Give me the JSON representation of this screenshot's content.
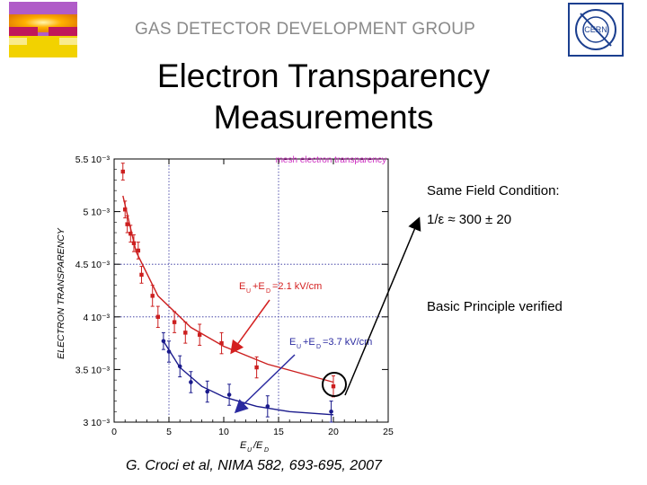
{
  "header": {
    "group_name": "GAS DETECTOR DEVELOPMENT GROUP",
    "logo_right_text": "CERN"
  },
  "title_line1": "Electron Transparency",
  "title_line2": "Measurements",
  "annotations": {
    "same_field": "Same Field Condition:",
    "ratio": "1/ε ≈ 300 ± 20",
    "principle": "Basic Principle verified"
  },
  "credit": "G. Croci et al, NIMA 582, 693-695, 2007",
  "colors": {
    "red": "#cc1f1f",
    "blue": "#1a1a8c",
    "arrow_red": "#d42020",
    "arrow_blue": "#2a2aa0"
  },
  "chart_data": {
    "type": "scatter",
    "title": "mesh electron transparency",
    "ylabel": "ELECTRON TRANSPARENCY",
    "xlabel": "E_U/E_D",
    "xlim": [
      0,
      25
    ],
    "ylim": [
      0.003,
      0.0055
    ],
    "xticks": [
      "0",
      "5",
      "10",
      "15",
      "20",
      "25"
    ],
    "yticks": [
      {
        "value": 0.0055,
        "label": "5.5 10⁻³"
      },
      {
        "value": 0.005,
        "label": "5 10⁻³"
      },
      {
        "value": 0.0045,
        "label": "4.5 10⁻³"
      },
      {
        "value": 0.004,
        "label": "4 10⁻³"
      },
      {
        "value": 0.0035,
        "label": "3.5 10⁻³"
      },
      {
        "value": 0.003,
        "label": "3 10⁻³"
      }
    ],
    "gridlines_x": [
      5,
      15
    ],
    "gridlines_y": [
      0.0045,
      0.004
    ],
    "series": [
      {
        "name": "E_U+E_D=2.1 kV/cm",
        "color": "red",
        "points": [
          {
            "x": 0.8,
            "y": 0.00538,
            "err": 8e-05
          },
          {
            "x": 1.0,
            "y": 0.00502,
            "err": 8e-05
          },
          {
            "x": 1.2,
            "y": 0.00488,
            "err": 8e-05
          },
          {
            "x": 1.5,
            "y": 0.00479,
            "err": 8e-05
          },
          {
            "x": 1.8,
            "y": 0.0047,
            "err": 8e-05
          },
          {
            "x": 2.2,
            "y": 0.00463,
            "err": 8e-05
          },
          {
            "x": 2.5,
            "y": 0.0044,
            "err": 8e-05
          },
          {
            "x": 3.5,
            "y": 0.0042,
            "err": 0.0001
          },
          {
            "x": 4.0,
            "y": 0.004,
            "err": 0.0001
          },
          {
            "x": 5.5,
            "y": 0.00395,
            "err": 0.0001
          },
          {
            "x": 6.5,
            "y": 0.00385,
            "err": 0.0001
          },
          {
            "x": 7.8,
            "y": 0.00383,
            "err": 0.0001
          },
          {
            "x": 9.8,
            "y": 0.00375,
            "err": 0.0001
          },
          {
            "x": 13.0,
            "y": 0.00352,
            "err": 0.0001
          },
          {
            "x": 20.0,
            "y": 0.00334,
            "err": 0.0001
          }
        ],
        "fit": [
          [
            0.8,
            0.00515
          ],
          [
            2,
            0.00462
          ],
          [
            4,
            0.0042
          ],
          [
            7,
            0.0039
          ],
          [
            10,
            0.00372
          ],
          [
            14,
            0.00355
          ],
          [
            20,
            0.00338
          ]
        ]
      },
      {
        "name": "E_U+E_D=3.7 kV/cm",
        "color": "blue",
        "points": [
          {
            "x": 4.5,
            "y": 0.00377,
            "err": 8e-05
          },
          {
            "x": 5.0,
            "y": 0.00367,
            "err": 0.0001
          },
          {
            "x": 6.0,
            "y": 0.00353,
            "err": 0.0001
          },
          {
            "x": 7.0,
            "y": 0.00338,
            "err": 0.0001
          },
          {
            "x": 8.5,
            "y": 0.00329,
            "err": 0.0001
          },
          {
            "x": 10.5,
            "y": 0.00326,
            "err": 0.0001
          },
          {
            "x": 14.0,
            "y": 0.00315,
            "err": 0.0001
          },
          {
            "x": 19.8,
            "y": 0.0031,
            "err": 0.0001
          }
        ],
        "fit": [
          [
            4.5,
            0.00377
          ],
          [
            6,
            0.00352
          ],
          [
            8,
            0.00334
          ],
          [
            10,
            0.00324
          ],
          [
            13,
            0.00315
          ],
          [
            16,
            0.0031
          ],
          [
            20,
            0.00307
          ]
        ]
      }
    ]
  }
}
